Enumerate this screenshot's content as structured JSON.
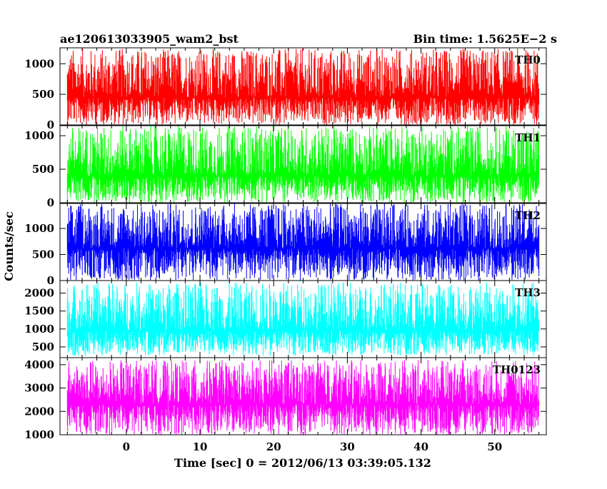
{
  "header": {
    "title": "ae120613033905_wam2_bst",
    "bin_time": "Bin time: 1.5625E−2 s"
  },
  "chart_data": {
    "type": "line",
    "xlabel": "Time [sec] 0 = 2012/06/13 03:39:05.132",
    "ylabel": "Counts/sec",
    "xlim": [
      -9,
      57
    ],
    "x_ticks": [
      0,
      10,
      20,
      30,
      40,
      50
    ],
    "x_range_data": [
      -8,
      56
    ],
    "panels": [
      {
        "name": "TH0",
        "color": "#ff0000",
        "ylim": [
          0,
          1260
        ],
        "y_ticks": [
          0,
          500,
          1000
        ],
        "baseline": 450,
        "low": 0,
        "high": 1250
      },
      {
        "name": "TH1",
        "color": "#00ff00",
        "ylim": [
          0,
          1150
        ],
        "y_ticks": [
          0,
          500,
          1000
        ],
        "baseline": 400,
        "low": 0,
        "high": 1150
      },
      {
        "name": "TH2",
        "color": "#0000ff",
        "ylim": [
          0,
          1480
        ],
        "y_ticks": [
          0,
          500,
          1000
        ],
        "baseline": 620,
        "low": 0,
        "high": 1480
      },
      {
        "name": "TH3",
        "color": "#00ffff",
        "ylim": [
          200,
          2350
        ],
        "y_ticks": [
          500,
          1000,
          1500,
          2000
        ],
        "baseline": 950,
        "low": 250,
        "high": 2300
      },
      {
        "name": "TH0123",
        "color": "#ff00ff",
        "ylim": [
          1000,
          4300
        ],
        "y_ticks": [
          1000,
          2000,
          3000,
          4000
        ],
        "baseline": 2300,
        "low": 1000,
        "high": 4200
      }
    ]
  }
}
